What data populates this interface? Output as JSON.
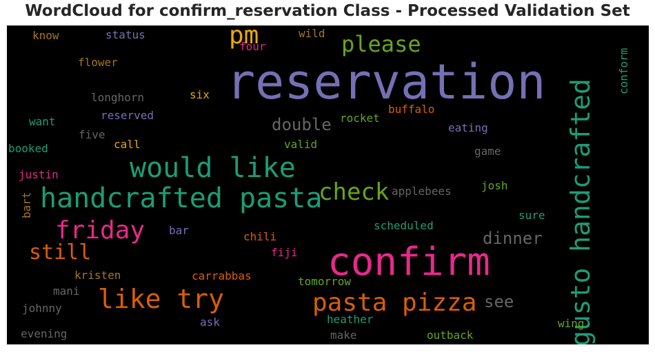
{
  "title": "WordCloud for confirm_reservation Class - Processed Validation Set",
  "chart_data": {
    "type": "wordcloud",
    "background": "#000000",
    "words": [
      {
        "text": "reservation",
        "color": "#7570b3"
      },
      {
        "text": "confirm",
        "color": "#e7298a"
      },
      {
        "text": "handcrafted pasta",
        "color": "#1b9e77"
      },
      {
        "text": "gusto handcrafted",
        "color": "#1b9e77"
      },
      {
        "text": "would like",
        "color": "#1b9e77"
      },
      {
        "text": "pasta pizza",
        "color": "#d95f02"
      },
      {
        "text": "like try",
        "color": "#d95f02"
      },
      {
        "text": "friday",
        "color": "#e7298a"
      },
      {
        "text": "pm",
        "color": "#e6ab02"
      },
      {
        "text": "check",
        "color": "#66a61e"
      },
      {
        "text": "please",
        "color": "#66a61e"
      },
      {
        "text": "still",
        "color": "#d95f02"
      },
      {
        "text": "double",
        "color": "#666666"
      },
      {
        "text": "dinner",
        "color": "#666666"
      },
      {
        "text": "see",
        "color": "#666666"
      },
      {
        "text": "conform",
        "color": "#1b9e77"
      },
      {
        "text": "status",
        "color": "#7570b3"
      },
      {
        "text": "know",
        "color": "#a6761d"
      },
      {
        "text": "wild",
        "color": "#a6761d"
      },
      {
        "text": "four",
        "color": "#e7298a"
      },
      {
        "text": "flower",
        "color": "#a6761d"
      },
      {
        "text": "longhorn",
        "color": "#666666"
      },
      {
        "text": "six",
        "color": "#e6ab02"
      },
      {
        "text": "reserved",
        "color": "#7570b3"
      },
      {
        "text": "buffalo",
        "color": "#d95f02"
      },
      {
        "text": "want",
        "color": "#1b9e77"
      },
      {
        "text": "rocket",
        "color": "#66a61e"
      },
      {
        "text": "eating",
        "color": "#7570b3"
      },
      {
        "text": "five",
        "color": "#666666"
      },
      {
        "text": "call",
        "color": "#e6ab02"
      },
      {
        "text": "valid",
        "color": "#66a61e"
      },
      {
        "text": "booked",
        "color": "#1b9e77"
      },
      {
        "text": "game",
        "color": "#666666"
      },
      {
        "text": "justin",
        "color": "#e7298a"
      },
      {
        "text": "applebees",
        "color": "#666666"
      },
      {
        "text": "josh",
        "color": "#66a61e"
      },
      {
        "text": "bart",
        "color": "#a6761d"
      },
      {
        "text": "sure",
        "color": "#1b9e77"
      },
      {
        "text": "bar",
        "color": "#7570b3"
      },
      {
        "text": "scheduled",
        "color": "#1b9e77"
      },
      {
        "text": "chili",
        "color": "#d95f02"
      },
      {
        "text": "fiji",
        "color": "#e7298a"
      },
      {
        "text": "kristen",
        "color": "#a6761d"
      },
      {
        "text": "carrabbas",
        "color": "#d95f02"
      },
      {
        "text": "mani",
        "color": "#666666"
      },
      {
        "text": "tomorrow",
        "color": "#66a61e"
      },
      {
        "text": "johnny",
        "color": "#666666"
      },
      {
        "text": "ask",
        "color": "#7570b3"
      },
      {
        "text": "heather",
        "color": "#1b9e77"
      },
      {
        "text": "wing",
        "color": "#66a61e"
      },
      {
        "text": "evening",
        "color": "#666666"
      },
      {
        "text": "make",
        "color": "#666666"
      },
      {
        "text": "outback",
        "color": "#66a61e"
      }
    ]
  }
}
